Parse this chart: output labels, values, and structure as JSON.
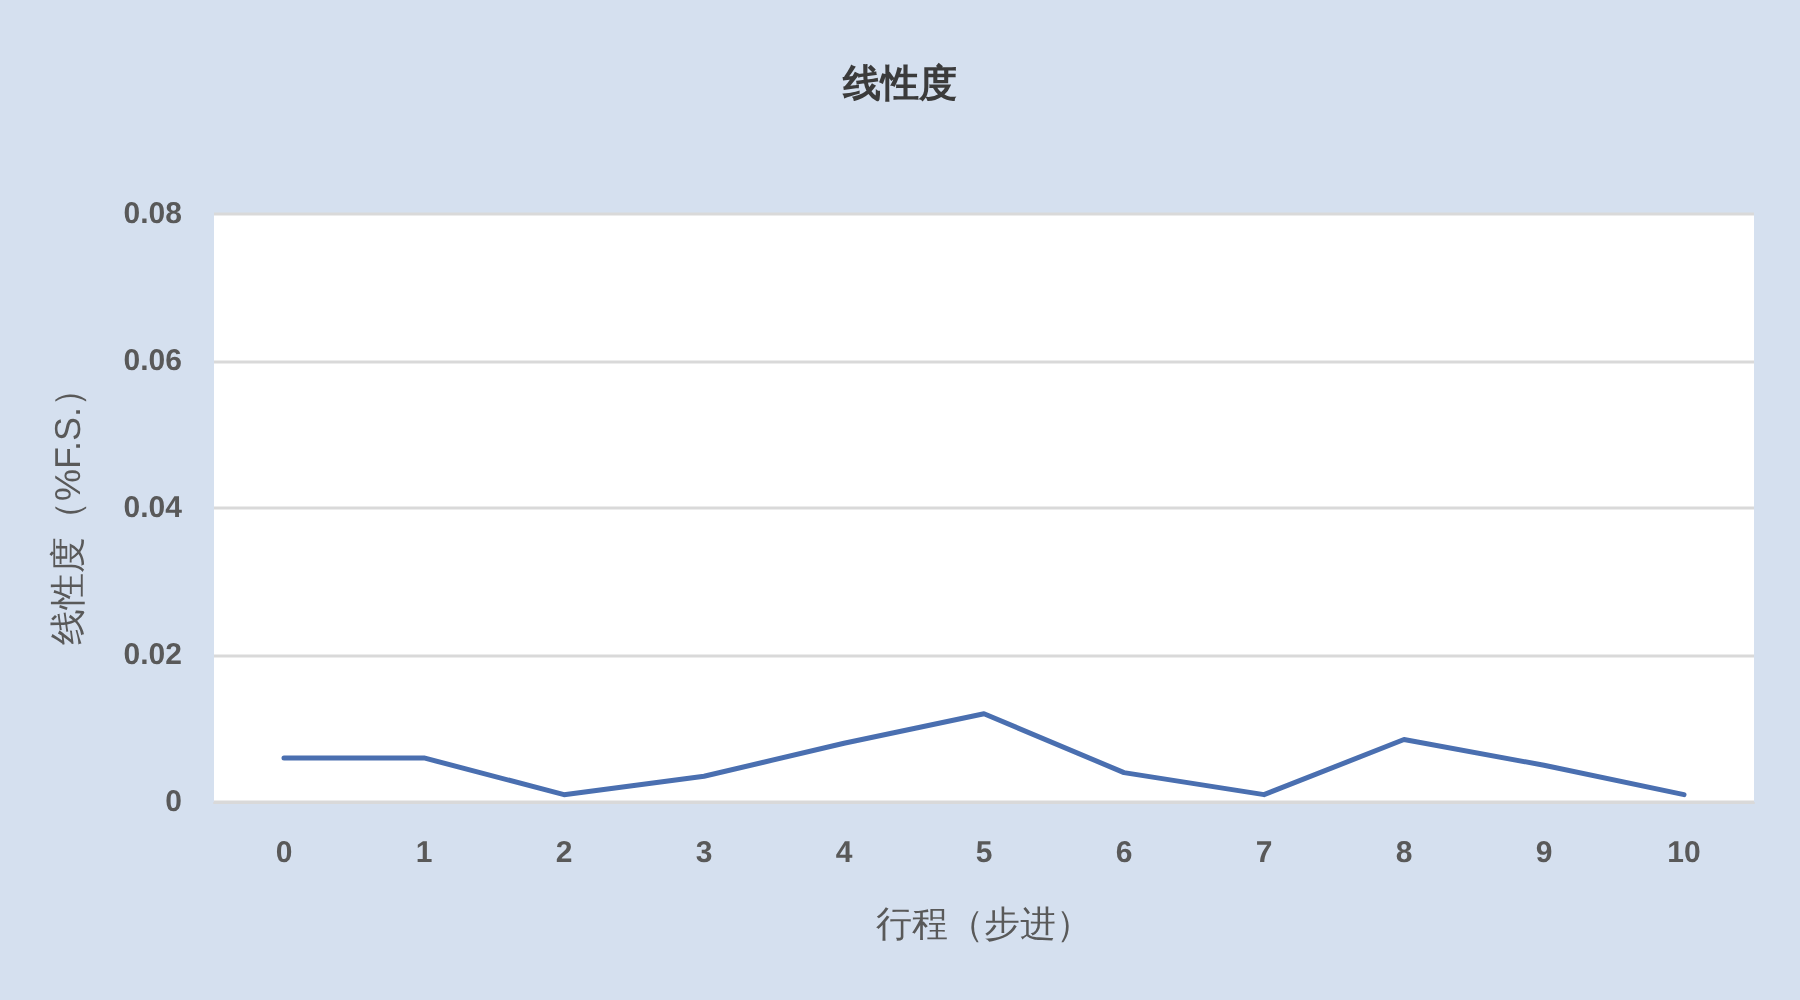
{
  "chart_data": {
    "type": "line",
    "title": "线性度",
    "xlabel": "行程（步进）",
    "ylabel": "线性度（%F.S.）",
    "categories": [
      "0",
      "1",
      "2",
      "3",
      "4",
      "5",
      "6",
      "7",
      "8",
      "9",
      "10"
    ],
    "series": [
      {
        "color": "#4a6fb0",
        "values": [
          0.006,
          0.006,
          0.001,
          0.0035,
          0.008,
          0.012,
          0.004,
          0.001,
          0.0085,
          0.005,
          0.001
        ]
      }
    ],
    "ylim": [
      0,
      0.08
    ],
    "yticks": [
      0,
      0.02,
      0.04,
      0.06,
      0.08
    ],
    "grid": "y",
    "marker": "none",
    "line_style": "solid"
  }
}
